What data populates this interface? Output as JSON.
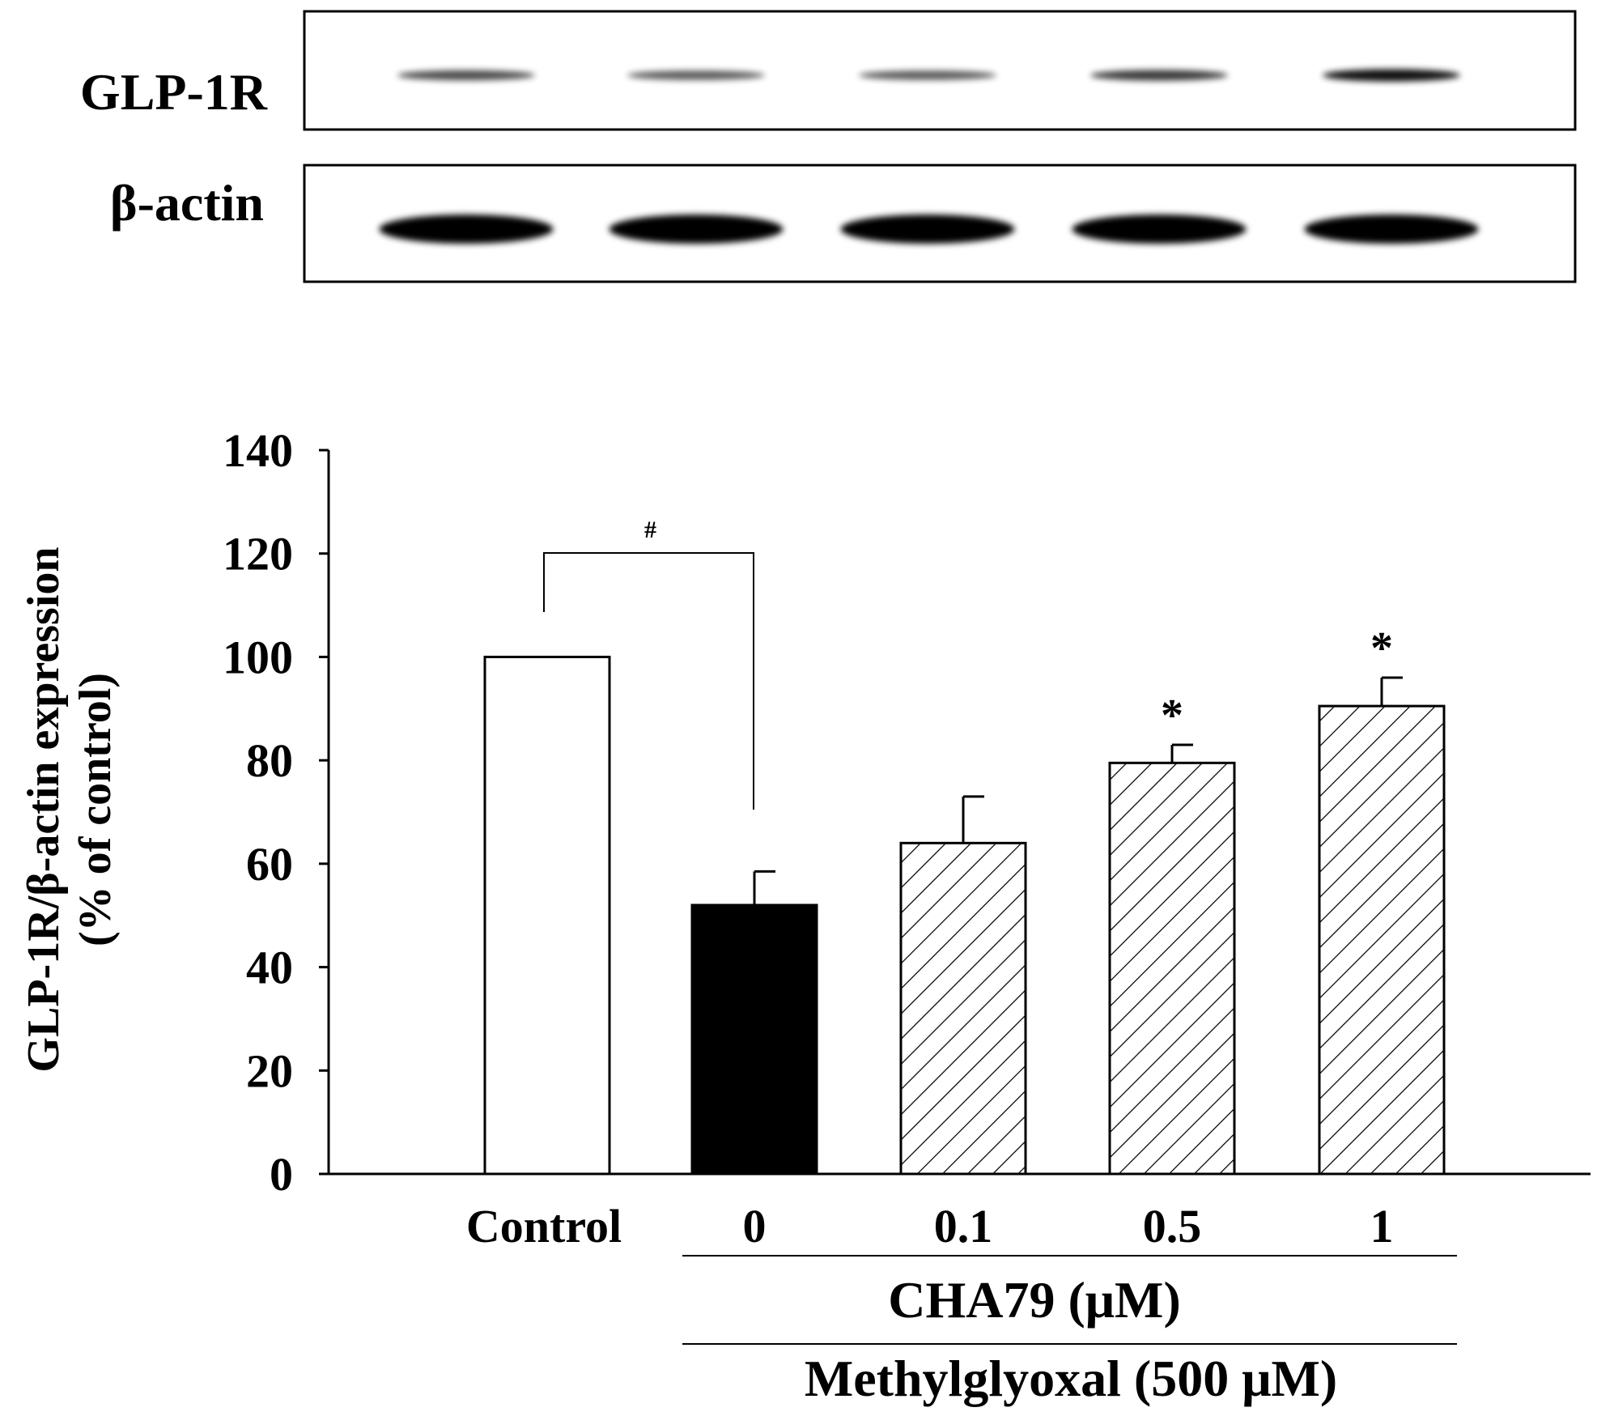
{
  "blot": {
    "rows": [
      {
        "label": "GLP-1R",
        "band_intensity": [
          0.55,
          0.45,
          0.45,
          0.65,
          0.9
        ]
      },
      {
        "label": "β-actin",
        "band_intensity": [
          1,
          1,
          1,
          1,
          1
        ]
      }
    ]
  },
  "chart_data": {
    "type": "bar",
    "categories": [
      "Control",
      "0",
      "0.1",
      "0.5",
      "1"
    ],
    "values": [
      100,
      52,
      64,
      79.5,
      90.5
    ],
    "errors": [
      0,
      6.5,
      9,
      3.5,
      5.5
    ],
    "bar_styles": [
      "white",
      "black",
      "hatched",
      "hatched",
      "hatched"
    ],
    "significance": [
      "",
      "",
      "",
      "*",
      "*"
    ],
    "bracket": {
      "from": 0,
      "to": 1,
      "label": "#"
    },
    "ylabel_line1": "GLP-1R/β-actin expression",
    "ylabel_line2": "(% of control)",
    "ylim": [
      0,
      140
    ],
    "yticks": [
      "0",
      "20",
      "40",
      "60",
      "80",
      "100",
      "120",
      "140"
    ],
    "grid": false,
    "group_labels": {
      "inner": "CHA79 (μM)",
      "outer": "Methylglyoxal (500 μM)"
    }
  }
}
